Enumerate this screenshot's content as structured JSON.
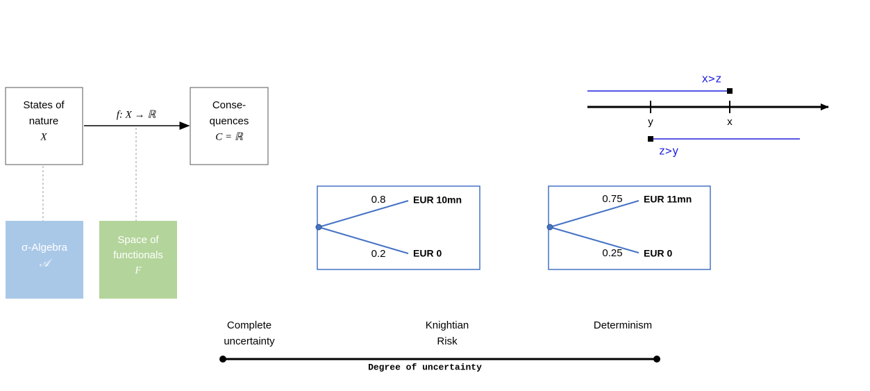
{
  "model": {
    "states": [
      "States of",
      "nature",
      "X"
    ],
    "map_label": "f: X → ℝ",
    "consequences": [
      "Conse-",
      "quences",
      "C = ℝ"
    ],
    "sigma_algebra": [
      "σ-Algebra",
      "𝒜"
    ],
    "functionals": [
      "Space of",
      "functionals",
      "F"
    ]
  },
  "order_line": {
    "axis_labels": [
      "y",
      "x"
    ],
    "upper": "x>z",
    "lower": "z>y"
  },
  "lotteries": [
    {
      "branches": [
        {
          "prob": "0.8",
          "outcome": "EUR 10mn"
        },
        {
          "prob": "0.2",
          "outcome": "EUR 0"
        }
      ]
    },
    {
      "branches": [
        {
          "prob": "0.75",
          "outcome": "EUR 11mn"
        },
        {
          "prob": "0.25",
          "outcome": "EUR 0"
        }
      ]
    }
  ],
  "uncertainty_scale": {
    "labels": [
      [
        "Complete",
        "uncertainty"
      ],
      [
        "Knightian",
        "Risk"
      ],
      [
        "Determinism"
      ]
    ],
    "axis_title": "Degree of uncertainty"
  }
}
